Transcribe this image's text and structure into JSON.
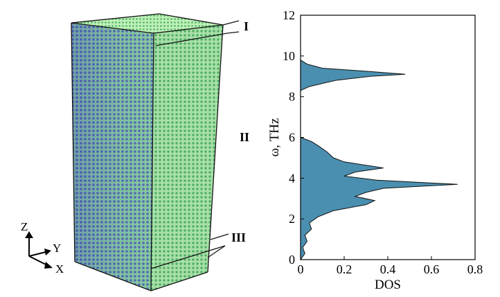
{
  "figure": {
    "region_labels": [
      "I",
      "II",
      "III"
    ],
    "axes_triad": {
      "z": "Z",
      "y": "Y",
      "x": "X"
    },
    "colors": {
      "atom_front": "#4f5fb8",
      "atom_side": "#7fcf86",
      "atom_top": "#9adf9a",
      "dos_fill": "#4a8fb0",
      "outline": "#111111"
    }
  },
  "chart_data": {
    "type": "area",
    "orientation": "horizontal",
    "title": "",
    "xlabel": "DOS",
    "ylabel": "ω, THz",
    "xlim": [
      0,
      0.8
    ],
    "ylim": [
      0,
      12
    ],
    "xticks": [
      "0",
      "0.2",
      "0.4",
      "0.6",
      "0.8"
    ],
    "yticks": [
      "0",
      "2",
      "4",
      "6",
      "8",
      "10",
      "12"
    ],
    "grid": false,
    "legend": "none",
    "series": [
      {
        "points": [
          [
            0.0,
            0.0
          ],
          [
            0.02,
            0.3
          ],
          [
            0.01,
            0.6
          ],
          [
            0.03,
            0.9
          ],
          [
            0.02,
            1.2
          ],
          [
            0.05,
            1.5
          ],
          [
            0.04,
            1.8
          ],
          [
            0.08,
            2.1
          ],
          [
            0.15,
            2.4
          ],
          [
            0.3,
            2.7
          ],
          [
            0.34,
            2.9
          ],
          [
            0.25,
            3.1
          ],
          [
            0.3,
            3.3
          ],
          [
            0.38,
            3.5
          ],
          [
            0.72,
            3.7
          ],
          [
            0.35,
            3.9
          ],
          [
            0.2,
            4.1
          ],
          [
            0.25,
            4.3
          ],
          [
            0.38,
            4.5
          ],
          [
            0.2,
            4.8
          ],
          [
            0.15,
            5.0
          ],
          [
            0.12,
            5.3
          ],
          [
            0.08,
            5.6
          ],
          [
            0.05,
            5.8
          ],
          [
            0.0,
            6.0
          ],
          [
            0.0,
            8.3
          ],
          [
            0.04,
            8.5
          ],
          [
            0.16,
            8.8
          ],
          [
            0.32,
            9.0
          ],
          [
            0.48,
            9.1
          ],
          [
            0.3,
            9.25
          ],
          [
            0.1,
            9.4
          ],
          [
            0.03,
            9.6
          ],
          [
            0.0,
            9.8
          ]
        ]
      }
    ]
  }
}
